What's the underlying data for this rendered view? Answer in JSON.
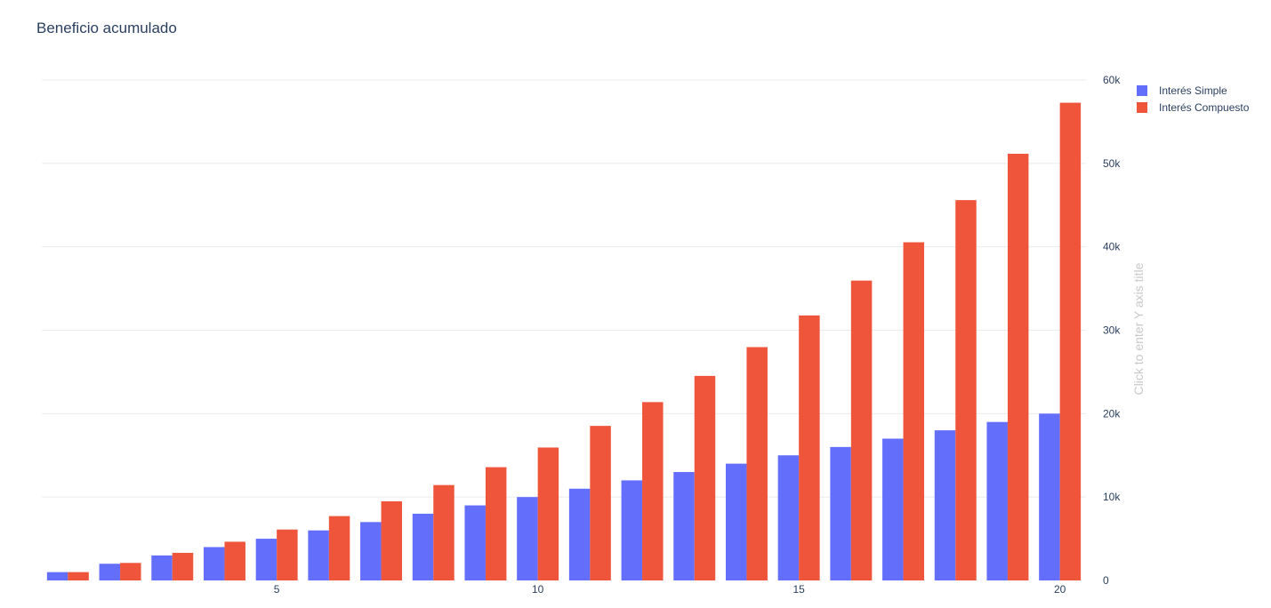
{
  "chart_data": {
    "type": "bar",
    "title": "Beneficio acumulado",
    "x": [
      1,
      2,
      3,
      4,
      5,
      6,
      7,
      8,
      9,
      10,
      11,
      12,
      13,
      14,
      15,
      16,
      17,
      18,
      19,
      20
    ],
    "x_tick_labels": [
      "5",
      "10",
      "15",
      "20"
    ],
    "x_tick_values": [
      5,
      10,
      15,
      20
    ],
    "y_tick_labels": [
      "0",
      "10k",
      "20k",
      "30k",
      "40k",
      "50k",
      "60k"
    ],
    "y_tick_values": [
      0,
      10000,
      20000,
      30000,
      40000,
      50000,
      60000
    ],
    "ylim": [
      0,
      60000
    ],
    "xlim": [
      0.5,
      20.5
    ],
    "y_axis_side": "right",
    "y_axis_placeholder": "Click to enter Y axis title",
    "grid": true,
    "legend_position": "top-right",
    "series": [
      {
        "name": "Interés Simple",
        "color": "#636efa",
        "values": [
          1000,
          2000,
          3000,
          4000,
          5000,
          6000,
          7000,
          8000,
          9000,
          10000,
          11000,
          12000,
          13000,
          14000,
          15000,
          16000,
          17000,
          18000,
          19000,
          20000
        ]
      },
      {
        "name": "Interés Compuesto",
        "color": "#ef553b",
        "values": [
          1000,
          2100,
          3310,
          4641,
          6105,
          7716,
          9487,
          11436,
          13579,
          15937,
          18531,
          21384,
          24523,
          27975,
          31772,
          35950,
          40545,
          45599,
          51159,
          57275
        ]
      }
    ]
  }
}
